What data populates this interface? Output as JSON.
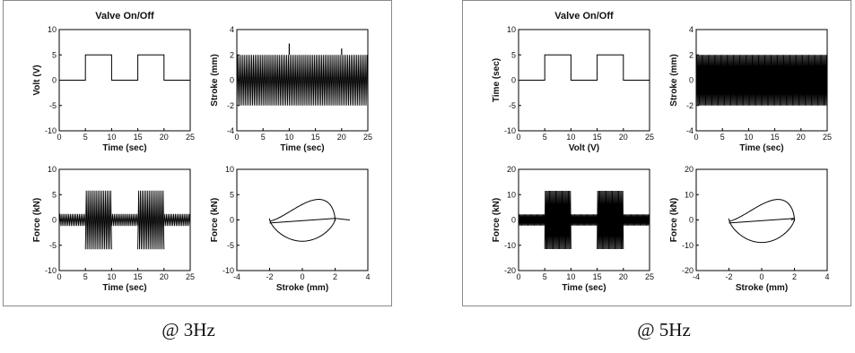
{
  "chart_data": [
    {
      "caption": "@ 3Hz",
      "subplots": [
        {
          "type": "line",
          "title": "Valve On/Off",
          "xlabel": "Time (sec)",
          "ylabel": "Volt (V)",
          "xlim": [
            0,
            25
          ],
          "ylim": [
            -10,
            10
          ],
          "xticks": [
            0,
            5,
            10,
            15,
            20,
            25
          ],
          "yticks": [
            -10,
            -5,
            0,
            5,
            10
          ],
          "series": [
            {
              "kind": "step",
              "x": [
                0,
                5,
                5,
                10,
                10,
                15,
                15,
                20,
                20,
                25
              ],
              "y": [
                0,
                0,
                5,
                5,
                0,
                0,
                5,
                5,
                0,
                0
              ]
            }
          ]
        },
        {
          "type": "line",
          "title": "",
          "xlabel": "Time (sec)",
          "ylabel": "Stroke (mm)",
          "xlim": [
            0,
            25
          ],
          "ylim": [
            -4,
            4
          ],
          "xticks": [
            0,
            5,
            10,
            15,
            20,
            25
          ],
          "yticks": [
            -4,
            -2,
            0,
            2,
            4
          ],
          "series": [
            {
              "kind": "oscillation",
              "freq_hz": 3,
              "amplitude": 2,
              "spikes": [
                {
                  "x": 10,
                  "y": 2.9
                },
                {
                  "x": 20,
                  "y": 2.5
                }
              ]
            }
          ]
        },
        {
          "type": "line",
          "title": "",
          "xlabel": "Time (sec)",
          "ylabel": "Force (kN)",
          "xlim": [
            0,
            25
          ],
          "ylim": [
            -10,
            10
          ],
          "xticks": [
            0,
            5,
            10,
            15,
            20,
            25
          ],
          "yticks": [
            -10,
            -5,
            0,
            5,
            10
          ],
          "series": [
            {
              "kind": "bursts",
              "freq_hz": 3,
              "base_amplitude": 1.2,
              "burst_amplitude": 5.8,
              "bursts": [
                [
                  5,
                  10
                ],
                [
                  15,
                  20
                ]
              ]
            }
          ]
        },
        {
          "type": "line",
          "title": "",
          "xlabel": "Stroke (mm)",
          "ylabel": "Force (kN)",
          "xlim": [
            -4,
            4
          ],
          "ylim": [
            -10,
            10
          ],
          "xticks": [
            -4,
            -2,
            0,
            2,
            4
          ],
          "yticks": [
            -10,
            -5,
            0,
            5,
            10
          ],
          "series": [
            {
              "kind": "loop",
              "x_amplitude": 2,
              "y_peak": 6,
              "y_trough": -4.5,
              "tail_x": 2.9
            }
          ]
        }
      ]
    },
    {
      "caption": "@ 5Hz",
      "subplots": [
        {
          "type": "line",
          "title": "Valve On/Off",
          "xlabel": "Volt (V)",
          "ylabel": "Time (sec)",
          "xlim": [
            0,
            25
          ],
          "ylim": [
            -10,
            10
          ],
          "xticks": [
            0,
            5,
            10,
            15,
            20,
            25
          ],
          "yticks": [
            -10,
            -5,
            0,
            5,
            10
          ],
          "series": [
            {
              "kind": "step",
              "x": [
                0,
                5,
                5,
                10,
                10,
                15,
                15,
                20,
                20,
                25
              ],
              "y": [
                0,
                0,
                5,
                5,
                0,
                0,
                5,
                5,
                0,
                0
              ]
            }
          ]
        },
        {
          "type": "line",
          "title": "",
          "xlabel": "Time (sec)",
          "ylabel": "Stroke (mm)",
          "xlim": [
            0,
            25
          ],
          "ylim": [
            -4,
            4
          ],
          "xticks": [
            0,
            5,
            10,
            15,
            20,
            25
          ],
          "yticks": [
            -4,
            -2,
            0,
            2,
            4
          ],
          "series": [
            {
              "kind": "oscillation",
              "freq_hz": 5,
              "amplitude": 2,
              "spikes": []
            }
          ]
        },
        {
          "type": "line",
          "title": "",
          "xlabel": "Time (sec)",
          "ylabel": "Force (kN)",
          "xlim": [
            0,
            25
          ],
          "ylim": [
            -20,
            20
          ],
          "xticks": [
            0,
            5,
            10,
            15,
            20,
            25
          ],
          "yticks": [
            -20,
            -10,
            0,
            10,
            20
          ],
          "series": [
            {
              "kind": "bursts",
              "freq_hz": 5,
              "base_amplitude": 2.2,
              "burst_amplitude": 11.5,
              "bursts": [
                [
                  5,
                  10
                ],
                [
                  15,
                  20
                ]
              ]
            }
          ]
        },
        {
          "type": "line",
          "title": "",
          "xlabel": "Stroke (mm)",
          "ylabel": "Force (kN)",
          "xlim": [
            -4,
            4
          ],
          "ylim": [
            -20,
            20
          ],
          "xticks": [
            -4,
            -2,
            0,
            2,
            4
          ],
          "yticks": [
            -20,
            -10,
            0,
            10,
            20
          ],
          "series": [
            {
              "kind": "loop",
              "x_amplitude": 2,
              "y_peak": 12,
              "y_trough": -9.5,
              "tail_x": 1.8
            }
          ]
        }
      ]
    }
  ]
}
